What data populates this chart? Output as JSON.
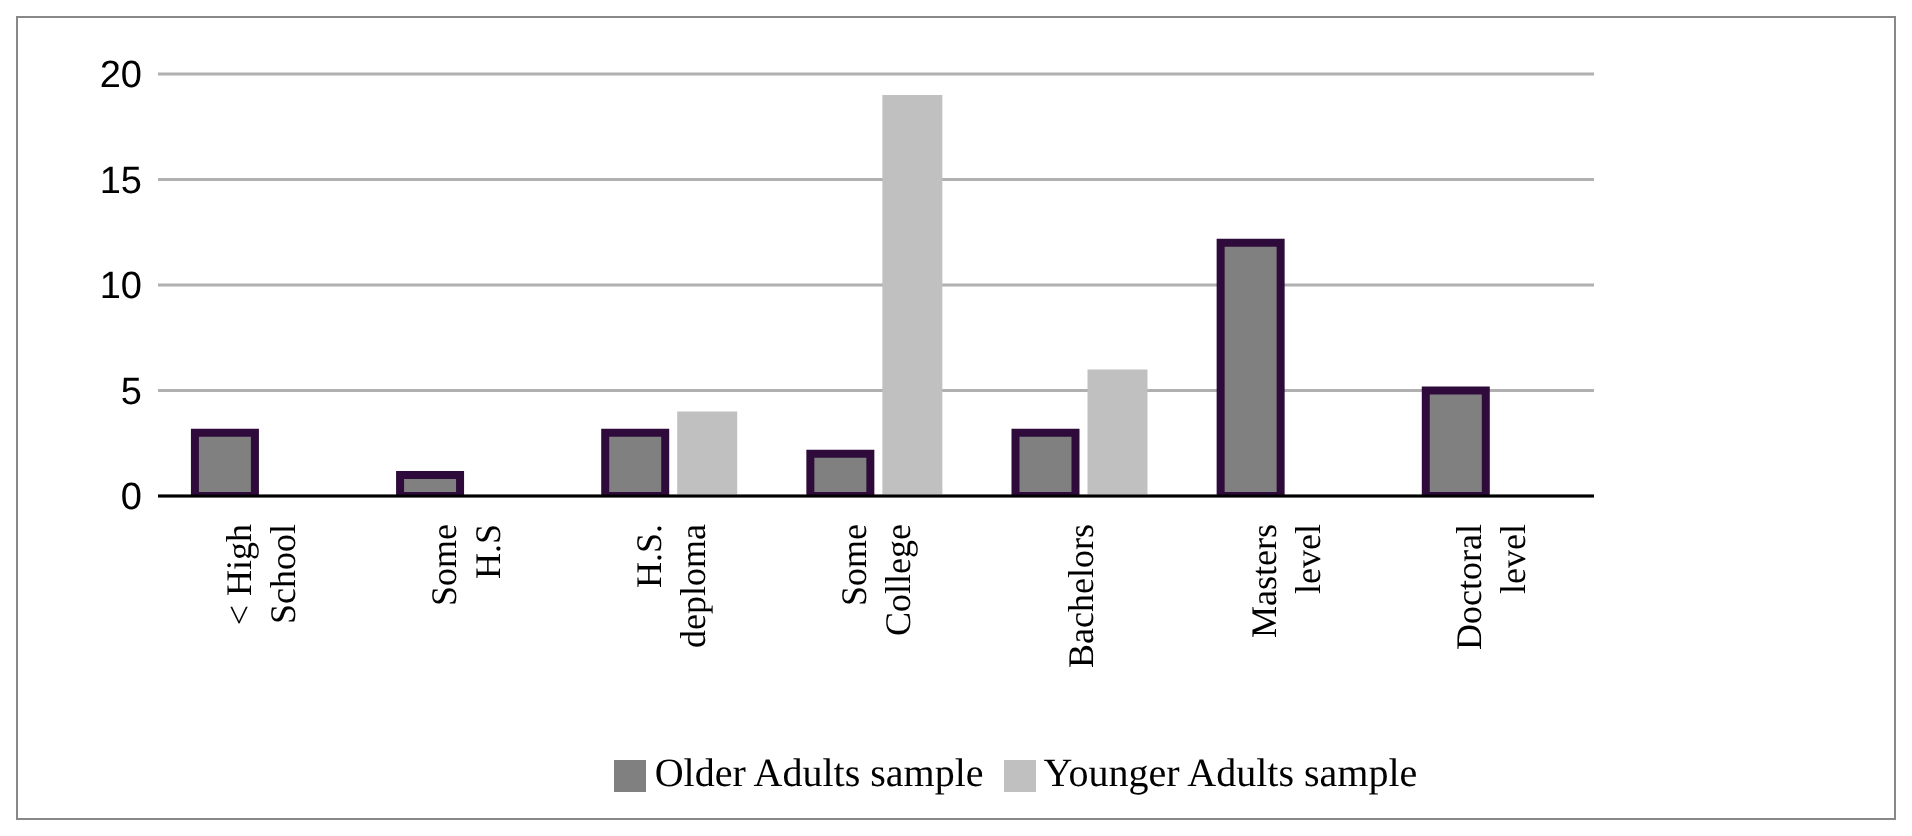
{
  "chart_data": {
    "type": "bar",
    "categories": [
      "< High School",
      "Some H.S",
      "H.S. deploma",
      "Some College",
      "Bachelors",
      "Masters level",
      "Doctoral level"
    ],
    "series": [
      {
        "name": "Older Adults sample",
        "color": "#808080",
        "values": [
          3,
          1,
          3,
          2,
          3,
          12,
          5
        ]
      },
      {
        "name": "Younger Adults sample",
        "color": "#c0c0c0",
        "values": [
          0,
          0,
          4,
          19,
          6,
          0,
          0
        ]
      }
    ],
    "ylim": [
      0,
      20
    ],
    "yticks": [
      0,
      5,
      10,
      15,
      20
    ],
    "grid": "y",
    "legend": "bottom"
  }
}
